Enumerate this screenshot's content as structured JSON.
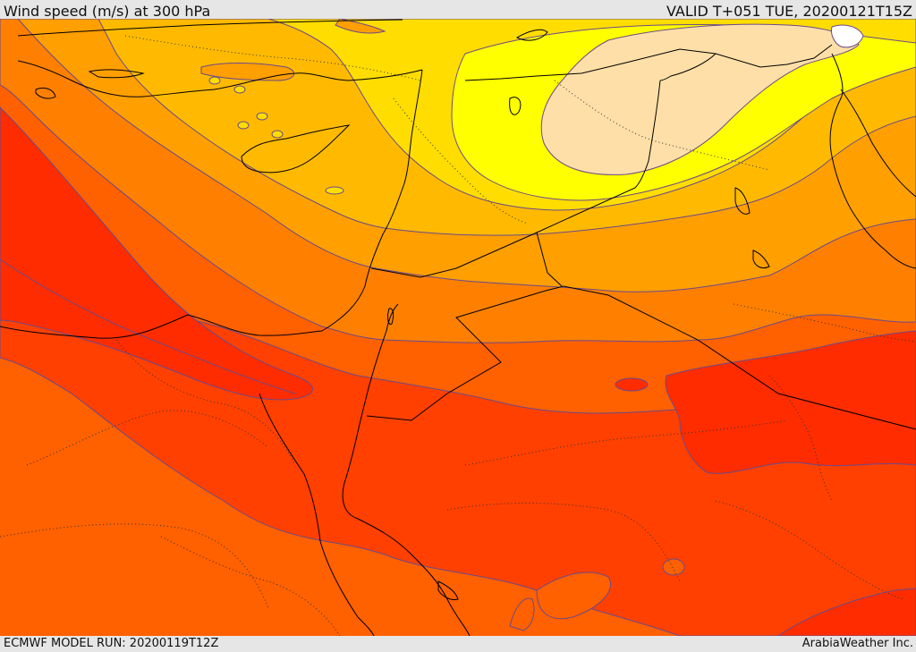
{
  "header": {
    "title": "Wind speed (m/s) at 300 hPa",
    "valid": "VALID T+051 TUE, 20200121T15Z"
  },
  "footer": {
    "model_run": "ECMWF MODEL RUN: 20200119T12Z",
    "credit": "ArabiaWeather Inc."
  },
  "map": {
    "variable": "wind speed at 300 hPa",
    "palette": [
      "#ffdfa8",
      "#ffff00",
      "#ffdd00",
      "#ffba00",
      "#ff9f00",
      "#ff8000",
      "#ff6000",
      "#ff4000",
      "#ff2c00"
    ],
    "contour_color": "#6a4a8a",
    "coastline_color": "#000000"
  }
}
